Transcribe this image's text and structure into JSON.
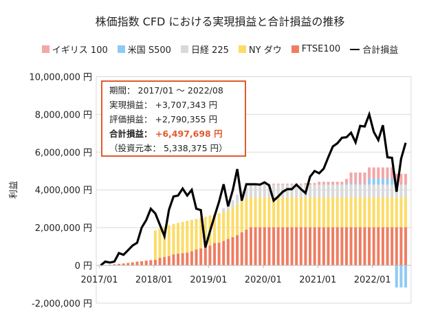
{
  "chart_data": {
    "type": "bar",
    "stacked": true,
    "title": "株価指数 CFD における実現損益と合計損益の推移",
    "ylabel": "利益",
    "xlabel": "",
    "ylim": [
      -2000000,
      10000000
    ],
    "y_ticks": [
      "10,000,000 円",
      "8,000,000 円",
      "6,000,000 円",
      "4,000,000 円",
      "2,000,000 円",
      "0 円",
      "-2,000,000 円"
    ],
    "y_tick_values": [
      10000000,
      8000000,
      6000000,
      4000000,
      2000000,
      0,
      -2000000
    ],
    "x_ticks": [
      "2017/01",
      "2018/01",
      "2019/01",
      "2020/01",
      "2021/01",
      "2022/01"
    ],
    "x_start": "2017/01",
    "x_end": "2022/08",
    "grid": true,
    "legend_position": "top",
    "colors": {
      "uk": "#f4a6a8",
      "us": "#8fcaf3",
      "nikkei": "#d9d9d9",
      "ny": "#fcdc66",
      "ftse": "#ef7d62",
      "total": "#000000",
      "box": "#e05a2b"
    },
    "series": [
      {
        "key": "ftse",
        "name": "FTSE100",
        "values": [
          0,
          20000,
          40000,
          60000,
          80000,
          100000,
          130000,
          160000,
          200000,
          220000,
          250000,
          280000,
          300000,
          400000,
          450000,
          500000,
          580000,
          620000,
          650000,
          680000,
          750000,
          850000,
          900000,
          950000,
          1050000,
          1190000,
          1200000,
          1300000,
          1400000,
          1500000,
          1600000,
          1750000,
          1900000,
          2020000,
          2020000,
          2020000,
          2020000,
          2020000,
          2020000,
          2020000,
          2020000,
          2020000,
          2020000,
          2020000,
          2020000,
          2020000,
          2020000,
          2020000,
          2020000,
          2020000,
          2020000,
          2020000,
          2020000,
          2020000,
          2020000,
          2020000,
          2020000,
          2020000,
          2020000,
          2020000,
          2020000,
          2020000,
          2020000,
          2020000,
          2020000,
          2020000,
          2020000,
          2020000
        ]
      },
      {
        "key": "ny",
        "name": "NY ダウ",
        "values": [
          0,
          0,
          0,
          0,
          0,
          0,
          0,
          0,
          0,
          0,
          0,
          0,
          1550000,
          1550000,
          1600000,
          1630000,
          1610000,
          1630000,
          1650000,
          1680000,
          1660000,
          1610000,
          1620000,
          1630000,
          1590000,
          1510000,
          1560000,
          1520000,
          1500000,
          1550000,
          1650000,
          1650000,
          1650000,
          1580000,
          1580000,
          1580000,
          1580000,
          1580000,
          1580000,
          1580000,
          1580000,
          1580000,
          1580000,
          1580000,
          1580000,
          1580000,
          1580000,
          1580000,
          1580000,
          1580000,
          1580000,
          1580000,
          1580000,
          1580000,
          1580000,
          1580000,
          1580000,
          1580000,
          1580000,
          1580000,
          1580000,
          1580000,
          1580000,
          1580000,
          1580000,
          1580000,
          1580000,
          1580000
        ]
      },
      {
        "key": "nikkei",
        "name": "日経 225",
        "values": [
          0,
          0,
          0,
          0,
          0,
          0,
          0,
          0,
          0,
          0,
          0,
          0,
          0,
          0,
          0,
          0,
          0,
          0,
          0,
          0,
          0,
          0,
          0,
          0,
          0,
          0,
          0,
          200000,
          350000,
          400000,
          500000,
          550000,
          600000,
          680000,
          680000,
          680000,
          680000,
          680000,
          680000,
          680000,
          680000,
          680000,
          680000,
          680000,
          680000,
          680000,
          680000,
          680000,
          680000,
          680000,
          680000,
          680000,
          680000,
          680000,
          680000,
          680000,
          680000,
          680000,
          680000,
          680000,
          680000,
          680000,
          680000,
          680000,
          680000,
          680000,
          680000,
          680000
        ]
      },
      {
        "key": "us",
        "name": "米国 S500",
        "values": [
          0,
          0,
          0,
          0,
          0,
          0,
          0,
          0,
          0,
          0,
          0,
          0,
          0,
          0,
          0,
          0,
          0,
          0,
          0,
          0,
          0,
          0,
          0,
          0,
          0,
          0,
          0,
          0,
          0,
          0,
          0,
          0,
          0,
          0,
          0,
          0,
          0,
          0,
          0,
          0,
          0,
          0,
          0,
          0,
          0,
          0,
          0,
          0,
          0,
          0,
          0,
          0,
          0,
          0,
          50000,
          50000,
          50000,
          50000,
          50000,
          330000,
          330000,
          330000,
          330000,
          330000,
          330000,
          -1170000,
          -1170000,
          -1170000
        ]
      },
      {
        "key": "uk",
        "name": "イギリス 100",
        "values": [
          0,
          0,
          0,
          0,
          0,
          0,
          0,
          0,
          0,
          0,
          0,
          0,
          0,
          0,
          0,
          0,
          0,
          0,
          0,
          0,
          0,
          0,
          0,
          0,
          0,
          0,
          0,
          0,
          0,
          0,
          0,
          0,
          0,
          0,
          50000,
          50000,
          50000,
          50000,
          50000,
          50000,
          50000,
          50000,
          50000,
          50000,
          50000,
          80000,
          80000,
          80000,
          150000,
          150000,
          150000,
          150000,
          150000,
          150000,
          250000,
          590000,
          590000,
          590000,
          590000,
          580000,
          580000,
          580000,
          580000,
          580000,
          580000,
          570000,
          570000,
          570000
        ]
      }
    ],
    "line": {
      "key": "total",
      "name": "合計損益",
      "values": [
        0,
        200000,
        150000,
        200000,
        650000,
        560000,
        800000,
        1050000,
        1200000,
        2000000,
        2400000,
        3000000,
        2750000,
        2150000,
        1550000,
        2950000,
        3650000,
        3700000,
        4070000,
        3700000,
        4000000,
        3000000,
        2930000,
        950000,
        1800000,
        2600000,
        3370000,
        4300000,
        3130000,
        3970000,
        5100000,
        3430000,
        4300000,
        4300000,
        4300000,
        4280000,
        4400000,
        4240000,
        3430000,
        3650000,
        3900000,
        4040000,
        4040000,
        4280000,
        4040000,
        3830000,
        4700000,
        5000000,
        4880000,
        5130000,
        5730000,
        6300000,
        6470000,
        6760000,
        6790000,
        7030000,
        6520000,
        7390000,
        7360000,
        8000000,
        7070000,
        6640000,
        7430000,
        5730000,
        5700000,
        3900000,
        5650000,
        6497698
      ]
    }
  },
  "legend": [
    {
      "key": "uk",
      "label": "イギリス 100"
    },
    {
      "key": "us",
      "label": "米国 S500"
    },
    {
      "key": "nikkei",
      "label": "日経 225"
    },
    {
      "key": "ny",
      "label": "NY ダウ"
    },
    {
      "key": "ftse",
      "label": "FTSE100"
    },
    {
      "key": "total",
      "label": "合計損益"
    }
  ],
  "info_box": {
    "period_label": "期間：",
    "period_value": "2017/01 ～ 2022/08",
    "realized_label": "実現損益：",
    "realized_value": "+3,707,343 円",
    "unrealized_label": "評価損益：",
    "unrealized_value": "+2,790,355 円",
    "total_label": "合計損益：",
    "total_value": "+6,497,698 円",
    "principal_text": "（投資元本： 5,338,375 円）"
  }
}
